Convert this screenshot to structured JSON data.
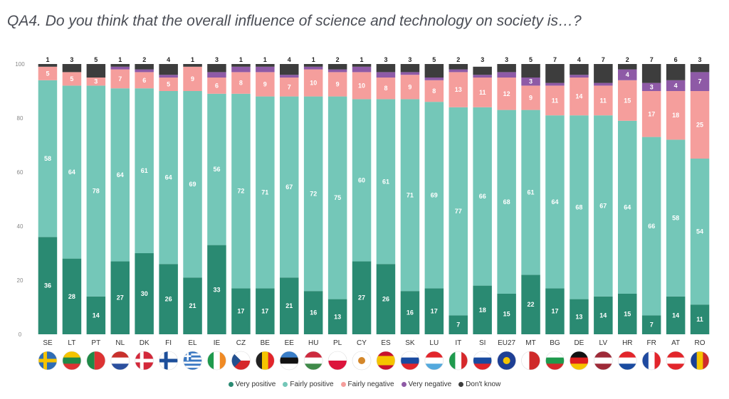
{
  "title": "QA4. Do you think that the overall influence of science and technology on society is…?",
  "colors": {
    "very_positive": "#2a8a72",
    "fairly_positive": "#74c7b8",
    "fairly_negative": "#f59e9c",
    "very_negative": "#8e5aa6",
    "dont_know": "#3d3d3d"
  },
  "chart_data": {
    "type": "bar",
    "stacked": true,
    "ylim": [
      0,
      100
    ],
    "yticks": [
      "0",
      "20",
      "40",
      "60",
      "80",
      "100"
    ],
    "categories": [
      "SE",
      "LT",
      "PT",
      "NL",
      "DK",
      "FI",
      "EL",
      "IE",
      "CZ",
      "BE",
      "EE",
      "HU",
      "PL",
      "CY",
      "ES",
      "SK",
      "LU",
      "IT",
      "SI",
      "EU27",
      "MT",
      "BG",
      "DE",
      "LV",
      "HR",
      "FR",
      "AT",
      "RO"
    ],
    "series": [
      {
        "name": "Very positive",
        "values": [
          36,
          28,
          14,
          27,
          30,
          26,
          21,
          33,
          17,
          17,
          21,
          16,
          13,
          27,
          26,
          16,
          17,
          7,
          18,
          15,
          22,
          17,
          13,
          14,
          15,
          7,
          14,
          11
        ]
      },
      {
        "name": "Fairly positive",
        "values": [
          58,
          64,
          78,
          64,
          61,
          64,
          69,
          56,
          72,
          71,
          67,
          72,
          75,
          60,
          61,
          71,
          69,
          77,
          66,
          68,
          61,
          64,
          68,
          67,
          64,
          66,
          58,
          54
        ]
      },
      {
        "name": "Fairly negative",
        "values": [
          5,
          5,
          3,
          7,
          6,
          5,
          9,
          6,
          8,
          9,
          7,
          10,
          9,
          10,
          8,
          9,
          8,
          13,
          11,
          12,
          9,
          11,
          14,
          11,
          15,
          17,
          18,
          25
        ]
      },
      {
        "name": "Very negative",
        "values": [
          0,
          0,
          0,
          1,
          1,
          1,
          0,
          2,
          2,
          2,
          1,
          1,
          1,
          2,
          2,
          1,
          1,
          1,
          1,
          2,
          3,
          1,
          1,
          1,
          4,
          3,
          4,
          7
        ]
      },
      {
        "name": "Don't know",
        "values": [
          1,
          3,
          5,
          1,
          2,
          4,
          1,
          3,
          1,
          1,
          4,
          1,
          2,
          1,
          3,
          3,
          5,
          2,
          3,
          3,
          5,
          7,
          4,
          7,
          2,
          7,
          6,
          3
        ]
      }
    ],
    "series_value_labels": [
      [
        "36",
        "28",
        "14",
        "27",
        "30",
        "26",
        "21",
        "33",
        "17",
        "17",
        "21",
        "16",
        "13",
        "27",
        "26",
        "16",
        "17",
        "7",
        "18",
        "15",
        "22",
        "17",
        "13",
        "14",
        "15",
        "7",
        "14",
        "11"
      ],
      [
        "58",
        "64",
        "78",
        "64",
        "61",
        "64",
        "69",
        "56",
        "72",
        "71",
        "67",
        "72",
        "75",
        "60",
        "61",
        "71",
        "69",
        "77",
        "66",
        "68",
        "61",
        "64",
        "68",
        "67",
        "64",
        "66",
        "58",
        "54"
      ],
      [
        "5",
        "5",
        "3",
        "7",
        "6",
        "5",
        "9",
        "6",
        "8",
        "9",
        "7",
        "10",
        "9",
        "10",
        "8",
        "9",
        "8",
        "13",
        "11",
        "12",
        "9",
        "11",
        "14",
        "11",
        "15",
        "17",
        "18",
        "25"
      ],
      [
        "",
        "",
        "",
        "",
        "",
        "",
        "",
        "",
        "",
        "",
        "",
        "",
        "",
        "",
        "",
        "",
        "",
        "",
        "",
        "",
        "3",
        "",
        "",
        "",
        "4",
        "3",
        "4",
        "7"
      ],
      [
        "1",
        "3",
        "5",
        "1",
        "2",
        "4",
        "1",
        "3",
        "1",
        "1",
        "4",
        "1",
        "2",
        "1",
        "3",
        "3",
        "5",
        "2",
        "3",
        "3",
        "5",
        "7",
        "4",
        "7",
        "2",
        "7",
        "6",
        "3"
      ]
    ],
    "legend_position": "bottom"
  },
  "flags": [
    {
      "kind": "nordic",
      "colors": [
        "#f5c400",
        "#2f6db5"
      ]
    },
    {
      "kind": "h3",
      "colors": [
        "#f5c400",
        "#1f8a48",
        "#d33"
      ]
    },
    {
      "kind": "v2",
      "colors": [
        "#1f8a48",
        "#d33"
      ]
    },
    {
      "kind": "h3",
      "colors": [
        "#c8302c",
        "#ffffff",
        "#2b4f9e"
      ]
    },
    {
      "kind": "nordic",
      "colors": [
        "#ffffff",
        "#d3283a"
      ]
    },
    {
      "kind": "nordic",
      "colors": [
        "#1d4f9a",
        "#ffffff"
      ]
    },
    {
      "kind": "stripes",
      "colors": [
        "#3a78c2",
        "#ffffff"
      ]
    },
    {
      "kind": "v3",
      "colors": [
        "#1f9a4d",
        "#ffffff",
        "#f08a24"
      ]
    },
    {
      "kind": "cz",
      "colors": [
        "#ffffff",
        "#d6282b",
        "#23508f"
      ]
    },
    {
      "kind": "v3",
      "colors": [
        "#222222",
        "#f5c400",
        "#e2252b"
      ]
    },
    {
      "kind": "h3",
      "colors": [
        "#3a7ec8",
        "#111111",
        "#ffffff"
      ]
    },
    {
      "kind": "h3",
      "colors": [
        "#cd2a3e",
        "#ffffff",
        "#3f8a49"
      ]
    },
    {
      "kind": "h2",
      "colors": [
        "#ffffff",
        "#dc143c"
      ]
    },
    {
      "kind": "solid",
      "colors": [
        "#ffffff",
        "#d4872a"
      ]
    },
    {
      "kind": "es",
      "colors": [
        "#c8102e",
        "#f5c400"
      ]
    },
    {
      "kind": "h3",
      "colors": [
        "#ffffff",
        "#1a4ba0",
        "#e2252b"
      ]
    },
    {
      "kind": "h3",
      "colors": [
        "#e2252b",
        "#ffffff",
        "#53a9dd"
      ]
    },
    {
      "kind": "v3",
      "colors": [
        "#1f9a4d",
        "#ffffff",
        "#d6282b"
      ]
    },
    {
      "kind": "h3",
      "colors": [
        "#ffffff",
        "#1a4ba0",
        "#e2252b"
      ]
    },
    {
      "kind": "solid",
      "colors": [
        "#1e3f95",
        "#f5c400"
      ]
    },
    {
      "kind": "v2",
      "colors": [
        "#ffffff",
        "#cf2a2a"
      ]
    },
    {
      "kind": "h3",
      "colors": [
        "#ffffff",
        "#1f9a4d",
        "#d6282b"
      ]
    },
    {
      "kind": "h3",
      "colors": [
        "#111111",
        "#dd1f1f",
        "#f5c400"
      ]
    },
    {
      "kind": "h3",
      "colors": [
        "#9e2a38",
        "#ffffff",
        "#9e2a38"
      ]
    },
    {
      "kind": "h3",
      "colors": [
        "#e2252b",
        "#ffffff",
        "#1a4ba0"
      ]
    },
    {
      "kind": "v3",
      "colors": [
        "#1f4aa0",
        "#ffffff",
        "#e2252b"
      ]
    },
    {
      "kind": "h3",
      "colors": [
        "#e2252b",
        "#ffffff",
        "#e2252b"
      ]
    },
    {
      "kind": "v3",
      "colors": [
        "#1a3f95",
        "#f5c400",
        "#cf2a2a"
      ]
    }
  ]
}
